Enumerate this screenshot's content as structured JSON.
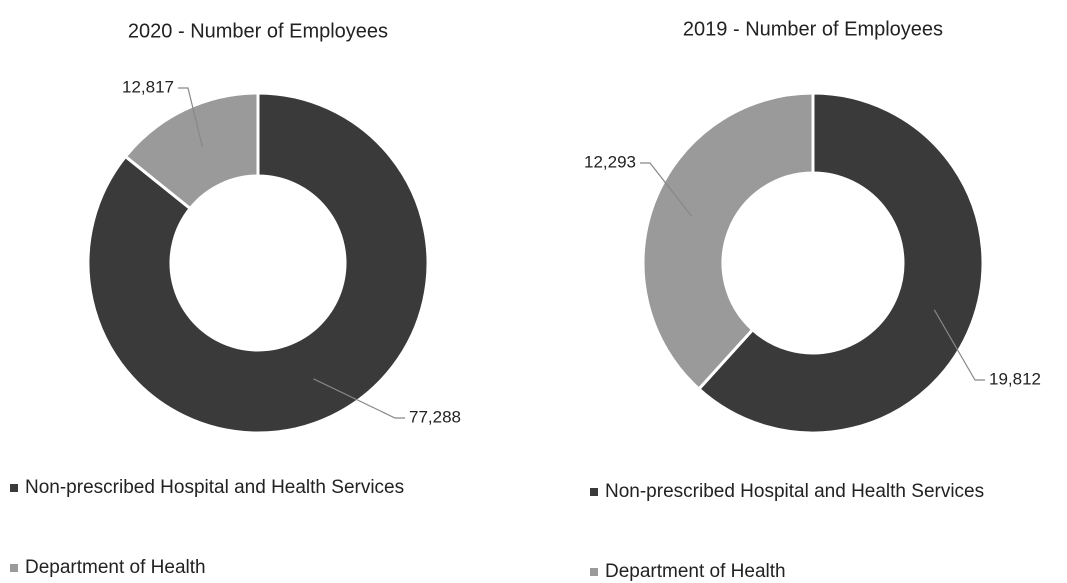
{
  "chart_data": [
    {
      "type": "donut",
      "title": "2020 - Number of Employees",
      "categories": [
        "Non-prescribed Hospital and Health Services",
        "Department of Health"
      ],
      "values": [
        77288,
        12817
      ],
      "value_labels": [
        "77,288",
        "12,817"
      ],
      "colors": [
        "#3a3a3a",
        "#9a9a9a"
      ],
      "legend": "bottom"
    },
    {
      "type": "donut",
      "title": "2019 - Number of Employees",
      "categories": [
        "Non-prescribed Hospital and Health Services",
        "Department of Health"
      ],
      "values": [
        19812,
        12293
      ],
      "value_labels": [
        "19,812",
        "12,293"
      ],
      "colors": [
        "#3a3a3a",
        "#9a9a9a"
      ],
      "legend": "bottom"
    }
  ]
}
